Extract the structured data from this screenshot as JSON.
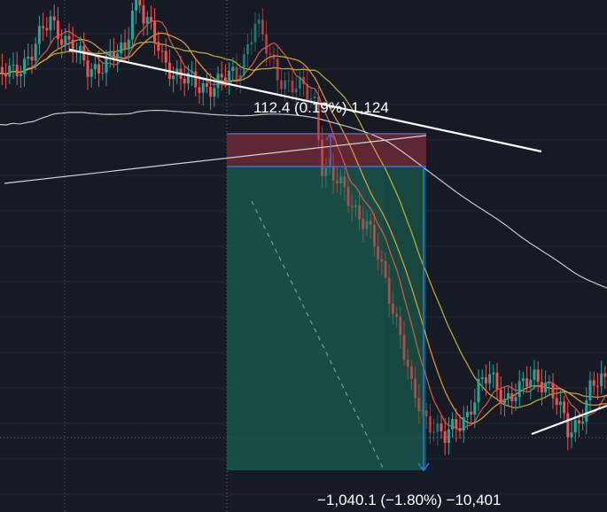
{
  "chart_data": {
    "type": "candlestick",
    "title": "",
    "xlabel": "",
    "ylabel": "",
    "grid": true,
    "colors": {
      "background": "#161a25",
      "grid": "#232836",
      "up": "#26a69a",
      "down": "#ef5350",
      "ma_fast": "#e05a48",
      "ma_mid": "#f0a23a",
      "ma_slow": "#c9b23b",
      "ma_long": "#d9d9d9",
      "trendline": "#ffffff",
      "profit_zone": "#1b5e4f",
      "loss_zone": "#6b2a36",
      "measure": "#3d6fd6"
    },
    "position": {
      "type": "short",
      "stop_label": "112.4 (0.19%) 1,124",
      "target_label": "−1,040.1 (−1.80%) −10,401",
      "stop_change": 112.4,
      "stop_change_percent": 0.19,
      "stop_ticks": 1124,
      "target_change": -1040.1,
      "target_change_percent": -1.8,
      "target_ticks": -10401
    },
    "candles_note": "price series approximated from the visual",
    "price_path": [
      [
        0,
        62.2
      ],
      [
        5,
        62.6
      ],
      [
        10,
        63.4
      ],
      [
        15,
        64.9
      ],
      [
        20,
        63.8
      ],
      [
        25,
        62.7
      ],
      [
        30,
        63.0
      ],
      [
        35,
        63.5
      ],
      [
        38,
        66.5
      ],
      [
        40,
        65.0
      ],
      [
        45,
        63.2
      ],
      [
        50,
        62.3
      ],
      [
        55,
        61.9
      ],
      [
        60,
        62.1
      ],
      [
        65,
        62.4
      ],
      [
        68,
        63.8
      ],
      [
        70,
        64.8
      ],
      [
        73,
        63.5
      ],
      [
        76,
        62.5
      ],
      [
        80,
        61.9
      ],
      [
        83,
        61.7
      ],
      [
        86,
        61.3
      ],
      [
        88,
        58.5
      ],
      [
        92,
        57.6
      ],
      [
        96,
        56.8
      ],
      [
        100,
        55.8
      ],
      [
        103,
        54.3
      ],
      [
        106,
        52.8
      ],
      [
        109,
        51.0
      ],
      [
        112,
        48.4
      ],
      [
        115,
        47.4
      ],
      [
        118,
        47.0
      ],
      [
        121,
        46.3
      ],
      [
        124,
        46.8
      ],
      [
        127,
        47.5
      ],
      [
        130,
        48.6
      ],
      [
        133,
        49.0
      ],
      [
        137,
        48.2
      ],
      [
        141,
        48.4
      ],
      [
        145,
        49.1
      ],
      [
        148,
        48.9
      ],
      [
        151,
        47.9
      ],
      [
        154,
        46.6
      ],
      [
        157,
        47.2
      ],
      [
        160,
        48.5
      ],
      [
        163,
        48.8
      ],
      [
        166,
        48.6
      ],
      [
        170,
        48.7
      ]
    ],
    "ma_lines": [
      {
        "key": "ma_fast",
        "period": 9
      },
      {
        "key": "ma_mid",
        "period": 15
      },
      {
        "key": "ma_slow",
        "period": 28
      },
      {
        "key": "ma_long",
        "period": 70
      }
    ]
  }
}
